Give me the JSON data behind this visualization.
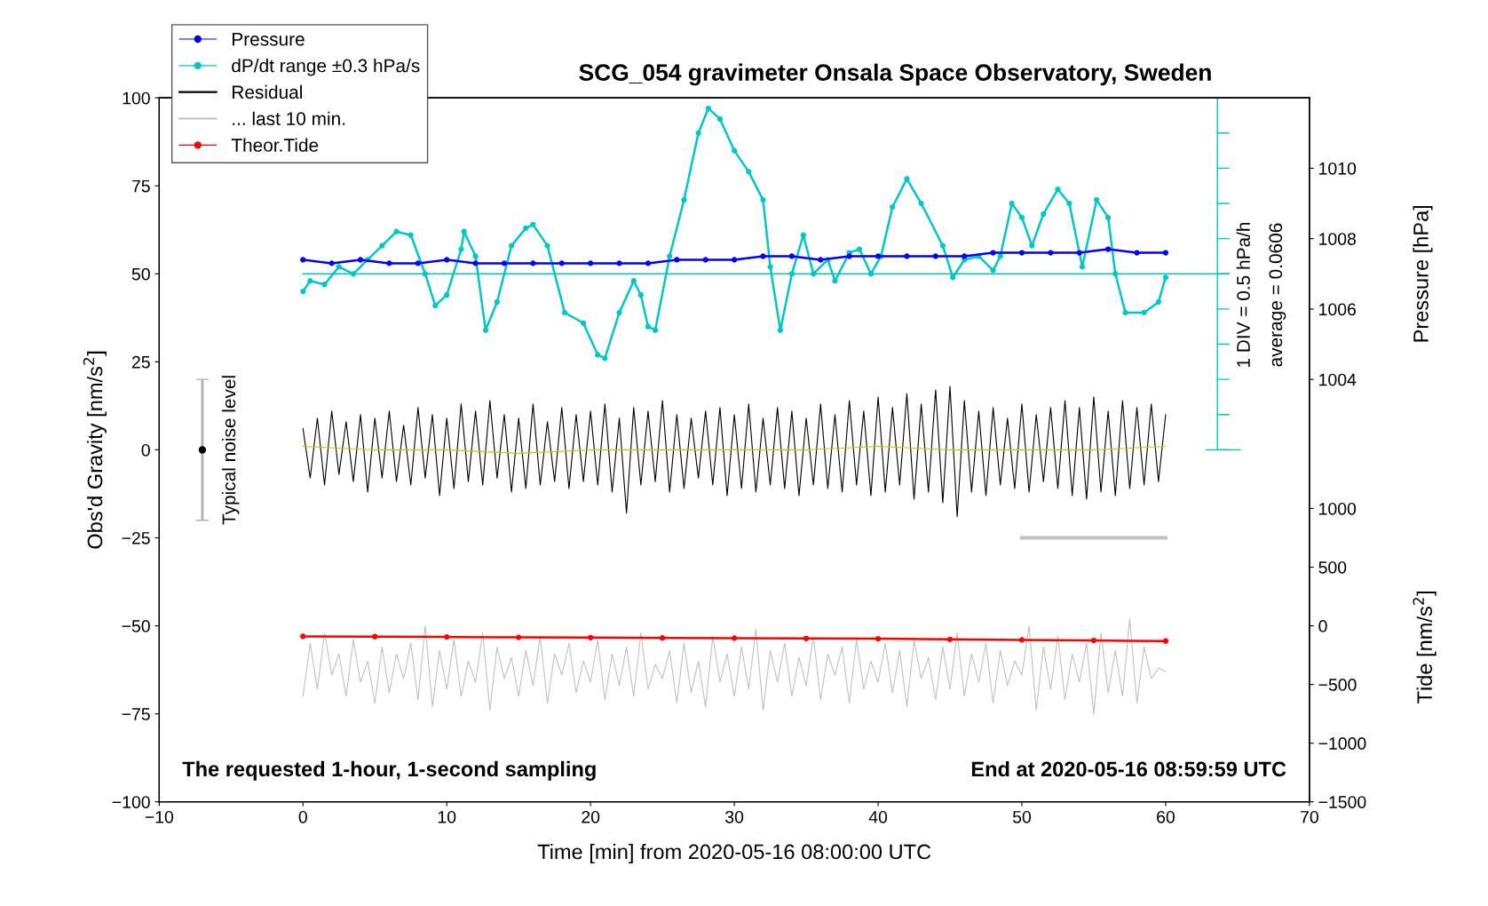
{
  "chart_data": {
    "type": "line",
    "title": "SCG_054 gravimeter Onsala Space Observatory, Sweden",
    "xlabel": "Time [min] from 2020-05-16 08:00:00 UTC",
    "ylabel": "Obs'd Gravity [nm/s$^{2}$]",
    "y2label": "Pressure [hPa]",
    "y3label": "Tide [nm/s$^{2}$]",
    "xlim": [
      -10,
      70
    ],
    "xticks": [
      -10,
      0,
      10,
      20,
      30,
      40,
      50,
      60,
      70
    ],
    "ylim": [
      -100,
      100
    ],
    "yticks": [
      -100,
      -75,
      -50,
      -25,
      0,
      25,
      50,
      75,
      100
    ],
    "y2lim": [
      992,
      1012
    ],
    "y2ticks": [
      1004,
      1006,
      1008,
      1010
    ],
    "y3lim": [
      -1500,
      4500
    ],
    "y3ticks": [
      -1500,
      -1000,
      -500,
      0,
      500,
      1000
    ],
    "grid": false,
    "legend": "top left",
    "annotations": [
      "The requested 1-hour, 1-second sampling",
      "End at 2020-05-16 08:59:59 UTC",
      "Typical noise level",
      "1 DIV = 0.5 hPa/h",
      "average = 0.0606"
    ],
    "ref_lines": [
      {
        "axis": "y",
        "value": 50,
        "color": "#00c8c8"
      }
    ],
    "series": [
      {
        "name": "Pressure",
        "axis": "y2",
        "color": "#0000ff",
        "marker": "circle",
        "x": [
          0,
          2,
          4,
          6,
          8,
          10,
          12,
          14,
          16,
          18,
          20,
          22,
          24,
          26,
          28,
          30,
          32,
          34,
          36,
          38,
          40,
          42,
          44,
          46,
          48,
          50,
          52,
          54,
          56,
          58,
          60
        ],
        "values": [
          1007.4,
          1007.3,
          1007.4,
          1007.3,
          1007.3,
          1007.4,
          1007.3,
          1007.3,
          1007.3,
          1007.3,
          1007.3,
          1007.3,
          1007.3,
          1007.4,
          1007.4,
          1007.4,
          1007.5,
          1007.5,
          1007.4,
          1007.5,
          1007.5,
          1007.5,
          1007.5,
          1007.5,
          1007.6,
          1007.6,
          1007.6,
          1007.6,
          1007.7,
          1007.6,
          1007.6
        ]
      },
      {
        "name": "dP/dt range ±0.3 hPa/s",
        "color": "#00c8c8",
        "marker": "circle",
        "x": [
          0,
          0.5,
          1.5,
          2.5,
          3.5,
          4.5,
          5.5,
          6.5,
          7.5,
          8.5,
          9.2,
          10,
          11,
          11.2,
          12,
          12.7,
          13.5,
          14.5,
          15.5,
          16,
          17,
          18.2,
          19.5,
          20.5,
          21,
          22,
          23,
          23.5,
          24,
          24.5,
          25.5,
          26.5,
          27.5,
          28.2,
          29,
          30,
          31,
          32,
          32.5,
          33.2,
          34,
          34.8,
          35.5,
          36.5,
          37,
          38,
          38.7,
          39.5,
          40.2,
          41,
          42,
          43,
          44.5,
          45.2,
          46,
          47,
          48,
          48.5,
          49.3,
          50,
          50.7,
          51.5,
          52.5,
          53.3,
          54.2,
          55.2,
          56,
          56.5,
          57.2,
          58.5,
          59.5,
          60
        ],
        "values": [
          45,
          48,
          47,
          52,
          50,
          54,
          58,
          62,
          61,
          50,
          41,
          44,
          57,
          62,
          55,
          34,
          42,
          58,
          63,
          64,
          58,
          39,
          36,
          27,
          26,
          39,
          48,
          44,
          35,
          34,
          55,
          71,
          90,
          97,
          94,
          85,
          79,
          71,
          52,
          34,
          50,
          61,
          50,
          54,
          48,
          56,
          57,
          50,
          55,
          69,
          77,
          70,
          58,
          49,
          54,
          55,
          51,
          55,
          70,
          66,
          58,
          67,
          74,
          70,
          52,
          71,
          66,
          50,
          39,
          39,
          42,
          49
        ]
      },
      {
        "name": "Residual",
        "color": "#000000",
        "marker": "none",
        "x": [
          0,
          0.5,
          1,
          1.5,
          2,
          2.5,
          3,
          3.5,
          4,
          4.5,
          5,
          5.5,
          6,
          6.5,
          7,
          7.5,
          8,
          8.5,
          9,
          9.5,
          10,
          10.5,
          11,
          11.5,
          12,
          12.5,
          13,
          13.5,
          14,
          14.5,
          15,
          15.5,
          16,
          16.5,
          17,
          17.5,
          18,
          18.5,
          19,
          19.5,
          20,
          20.5,
          21,
          21.5,
          22,
          22.5,
          23,
          23.5,
          24,
          24.5,
          25,
          25.5,
          26,
          26.5,
          27,
          27.5,
          28,
          28.5,
          29,
          29.5,
          30,
          30.5,
          31,
          31.5,
          32,
          32.5,
          33,
          33.5,
          34,
          34.5,
          35,
          35.5,
          36,
          36.5,
          37,
          37.5,
          38,
          38.5,
          39,
          39.5,
          40,
          40.5,
          41,
          41.5,
          42,
          42.5,
          43,
          43.5,
          44,
          44.5,
          45,
          45.5,
          46,
          46.5,
          47,
          47.5,
          48,
          48.5,
          49,
          49.5,
          50,
          50.5,
          51,
          51.5,
          52,
          52.5,
          53,
          53.5,
          54,
          54.5,
          55,
          55.5,
          56,
          56.5,
          57,
          57.5,
          58,
          58.5,
          59,
          59.5,
          60
        ],
        "values": [
          6,
          -8,
          9,
          -10,
          11,
          -7,
          8,
          -9,
          10,
          -12,
          9,
          -8,
          11,
          -9,
          7,
          -10,
          12,
          -8,
          10,
          -13,
          9,
          -11,
          13,
          -9,
          11,
          -10,
          14,
          -8,
          10,
          -12,
          9,
          -11,
          13,
          -10,
          8,
          -9,
          12,
          -11,
          10,
          -9,
          11,
          -10,
          13,
          -12,
          9,
          -18,
          12,
          -10,
          11,
          -9,
          14,
          -12,
          10,
          -11,
          9,
          -8,
          11,
          -10,
          12,
          -13,
          10,
          -11,
          13,
          -12,
          9,
          -10,
          12,
          -11,
          11,
          -13,
          9,
          -10,
          13,
          -11,
          10,
          -12,
          14,
          -10,
          11,
          -13,
          15,
          -12,
          12,
          -10,
          16,
          -14,
          13,
          -12,
          17,
          -15,
          18,
          -19,
          14,
          -12,
          11,
          -13,
          12,
          -10,
          9,
          -11,
          13,
          -12,
          10,
          -9,
          12,
          -11,
          14,
          -13,
          12,
          -14,
          15,
          -12,
          11,
          -13,
          14,
          -11,
          12,
          -10,
          13,
          -9,
          10
        ]
      },
      {
        "color": "#c8c800",
        "marker": "none",
        "x": [
          0,
          5,
          10,
          15,
          20,
          25,
          30,
          35,
          40,
          45,
          50,
          55,
          60
        ],
        "values": [
          1,
          0,
          0,
          -1,
          0,
          0,
          0,
          0,
          1,
          0,
          0,
          0,
          1
        ]
      },
      {
        "name": "... last 10 min.",
        "color": "#c0c0c0",
        "marker": "none",
        "x": [
          0,
          0.5,
          1,
          1.5,
          2,
          2.5,
          3,
          3.5,
          4,
          4.5,
          5,
          5.5,
          6,
          6.5,
          7,
          7.5,
          8,
          8.5,
          9,
          9.5,
          10,
          10.5,
          11,
          11.5,
          12,
          12.5,
          13,
          13.5,
          14,
          14.5,
          15,
          15.5,
          16,
          16.5,
          17,
          17.5,
          18,
          18.5,
          19,
          19.5,
          20,
          20.5,
          21,
          21.5,
          22,
          22.5,
          23,
          23.5,
          24,
          24.5,
          25,
          25.5,
          26,
          26.5,
          27,
          27.5,
          28,
          28.5,
          29,
          29.5,
          30,
          30.5,
          31,
          31.5,
          32,
          32.5,
          33,
          33.5,
          34,
          34.5,
          35,
          35.5,
          36,
          36.5,
          37,
          37.5,
          38,
          38.5,
          39,
          39.5,
          40,
          40.5,
          41,
          41.5,
          42,
          42.5,
          43,
          43.5,
          44,
          44.5,
          45,
          45.5,
          46,
          46.5,
          47,
          47.5,
          48,
          48.5,
          49,
          49.5,
          50,
          50.5,
          51,
          51.5,
          52,
          52.5,
          53,
          53.5,
          54,
          54.5,
          55,
          55.5,
          56,
          56.5,
          57,
          57.5,
          58,
          58.5,
          59,
          59.5,
          60
        ],
        "values": [
          -70,
          -55,
          -68,
          -52,
          -64,
          -58,
          -70,
          -54,
          -66,
          -60,
          -72,
          -56,
          -69,
          -58,
          -65,
          -55,
          -71,
          -50,
          -73,
          -57,
          -68,
          -54,
          -70,
          -60,
          -66,
          -52,
          -74,
          -56,
          -65,
          -59,
          -70,
          -57,
          -67,
          -53,
          -72,
          -58,
          -64,
          -55,
          -69,
          -60,
          -66,
          -54,
          -71,
          -58,
          -67,
          -56,
          -70,
          -52,
          -68,
          -61,
          -65,
          -57,
          -72,
          -55,
          -69,
          -60,
          -73,
          -53,
          -66,
          -58,
          -70,
          -56,
          -68,
          -51,
          -74,
          -57,
          -66,
          -55,
          -70,
          -59,
          -67,
          -53,
          -71,
          -58,
          -64,
          -56,
          -72,
          -54,
          -68,
          -60,
          -66,
          -55,
          -69,
          -57,
          -73,
          -54,
          -65,
          -59,
          -71,
          -56,
          -68,
          -52,
          -70,
          -58,
          -66,
          -55,
          -72,
          -57,
          -67,
          -60,
          -64,
          -50,
          -74,
          -56,
          -68,
          -53,
          -71,
          -58,
          -66,
          -55,
          -75,
          -52,
          -69,
          -57,
          -70,
          -48,
          -72,
          -56,
          -65,
          -62,
          -63
        ]
      },
      {
        "color": "#c0c0c0",
        "marker": "none",
        "x": [
          50,
          60
        ],
        "values": [
          -25,
          -25
        ]
      },
      {
        "name": "Theor.Tide",
        "axis": "y3",
        "color": "#ff0000",
        "marker": "circle",
        "x": [
          0,
          5,
          10,
          15,
          20,
          25,
          30,
          35,
          40,
          45,
          50,
          55,
          60
        ],
        "values": [
          -90,
          -92,
          -95,
          -98,
          -100,
          -103,
          -105,
          -108,
          -110,
          -115,
          -120,
          -125,
          -130
        ]
      },
      {
        "type": "scatter",
        "color": "#000000",
        "marker": "circle",
        "x": [
          -7
        ],
        "values": [
          0
        ],
        "errors": [
          20
        ]
      }
    ]
  }
}
